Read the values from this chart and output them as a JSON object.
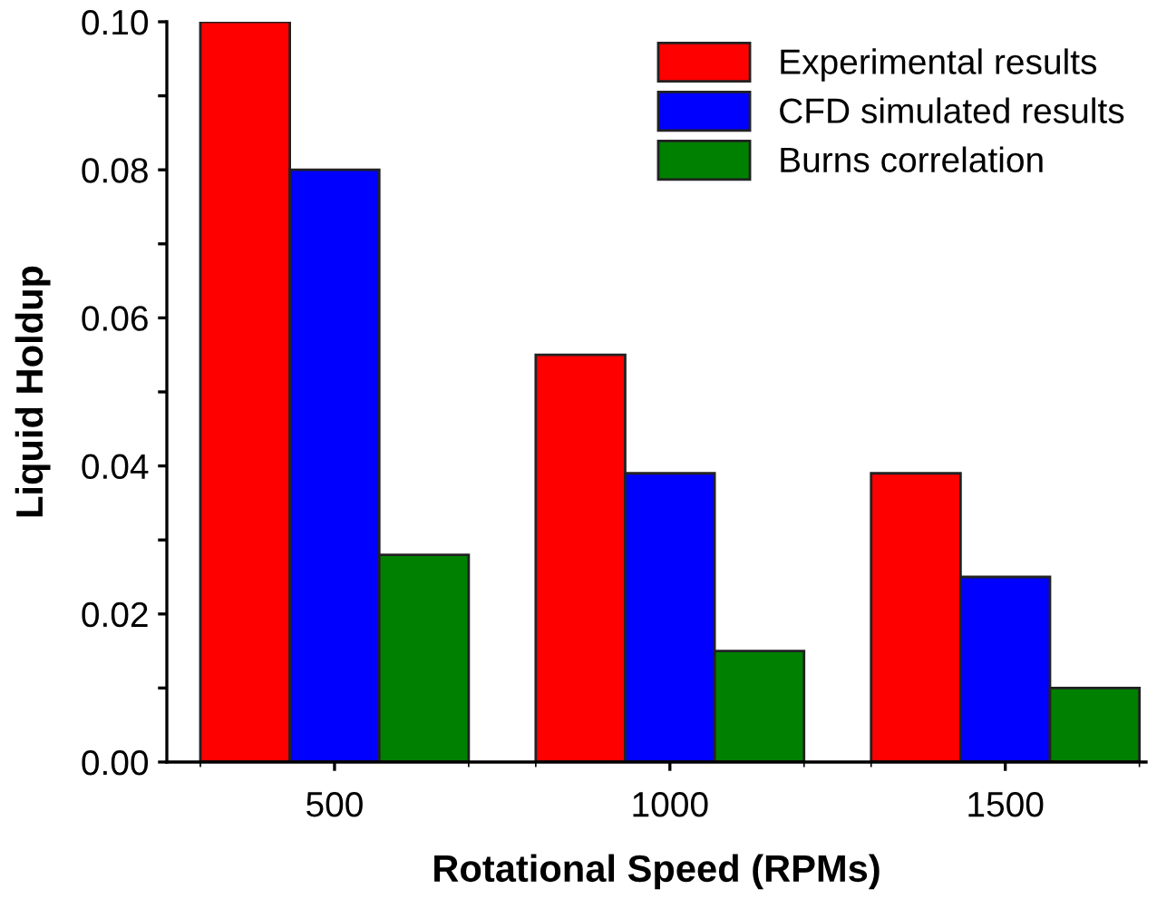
{
  "chart_data": {
    "type": "bar",
    "xlabel": "Rotational Speed (RPMs)",
    "ylabel": "Liquid Holdup",
    "categories": [
      "500",
      "1000",
      "1500"
    ],
    "series": [
      {
        "name": "Experimental results",
        "color": "#ff0000",
        "values": [
          0.1,
          0.055,
          0.039
        ]
      },
      {
        "name": "CFD simulated results",
        "color": "#0000ff",
        "values": [
          0.08,
          0.039,
          0.025
        ]
      },
      {
        "name": "Burns correlation",
        "color": "#008000",
        "values": [
          0.028,
          0.015,
          0.01
        ]
      }
    ],
    "ylim": [
      0,
      0.1
    ],
    "yticks": [
      {
        "value": 0,
        "label": "0.00"
      },
      {
        "value": 0.01,
        "label": null
      },
      {
        "value": 0.02,
        "label": "0.02"
      },
      {
        "value": 0.03,
        "label": null
      },
      {
        "value": 0.04,
        "label": "0.04"
      },
      {
        "value": 0.05,
        "label": null
      },
      {
        "value": 0.06,
        "label": "0.06"
      },
      {
        "value": 0.07,
        "label": null
      },
      {
        "value": 0.08,
        "label": "0.08"
      },
      {
        "value": 0.09,
        "label": null
      },
      {
        "value": 0.1,
        "label": "0.10"
      }
    ],
    "grid": false,
    "legend": "top right"
  }
}
